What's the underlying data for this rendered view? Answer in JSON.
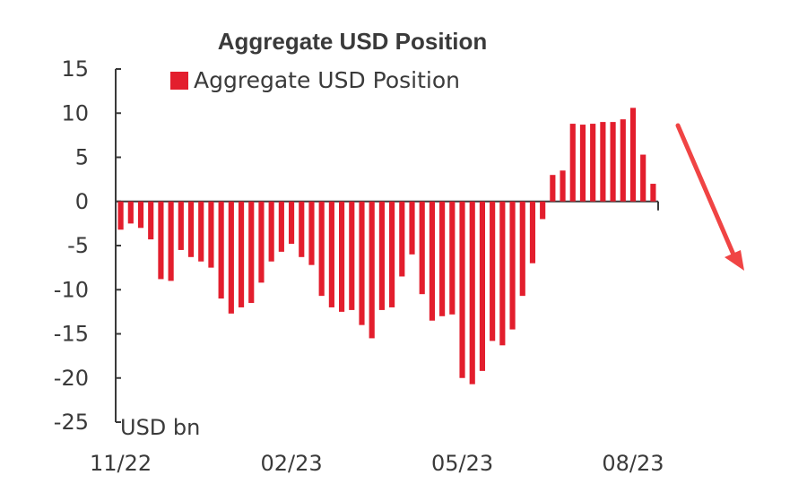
{
  "chart_data": {
    "type": "bar",
    "title": "Aggregate USD Position",
    "ylabel": "USD bn",
    "xlabel": "",
    "ylim": [
      -25,
      15
    ],
    "yticks": [
      15,
      10,
      5,
      0,
      -5,
      -10,
      -15,
      -20,
      -25
    ],
    "xtick_labels": [
      {
        "label": "11/22",
        "index": 0
      },
      {
        "label": "02/23",
        "index": 17
      },
      {
        "label": "05/23",
        "index": 34
      },
      {
        "label": "08/23",
        "index": 51
      }
    ],
    "grid": false,
    "legend": {
      "position": "top-left",
      "entries": [
        "Aggregate USD Position"
      ]
    },
    "colors": {
      "bar": "#e31e2d",
      "arrow": "#f04444",
      "axis": "#3a3a3a"
    },
    "series": [
      {
        "name": "Aggregate USD Position",
        "values": [
          -3.2,
          -2.5,
          -3.0,
          -4.3,
          -8.8,
          -9.0,
          -5.5,
          -6.3,
          -6.8,
          -7.5,
          -11.0,
          -12.7,
          -12.0,
          -11.5,
          -9.2,
          -6.8,
          -5.7,
          -4.8,
          -6.3,
          -7.2,
          -10.7,
          -12.0,
          -12.5,
          -12.3,
          -14.0,
          -15.5,
          -12.3,
          -12.0,
          -8.5,
          -6.0,
          -10.5,
          -13.5,
          -13.0,
          -12.8,
          -20.0,
          -20.7,
          -19.2,
          -15.8,
          -16.3,
          -14.5,
          -10.7,
          -7.0,
          -2.0,
          3.0,
          3.5,
          8.8,
          8.7,
          8.8,
          9.0,
          9.0,
          9.3,
          10.6,
          5.3,
          2.0
        ]
      }
    ],
    "annotations": [
      {
        "type": "arrow",
        "direction": "down-right",
        "meaning": "trend"
      }
    ]
  }
}
